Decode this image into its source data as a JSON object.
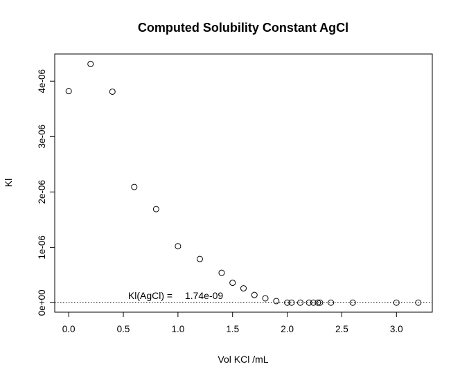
{
  "chart_data": {
    "type": "scatter",
    "title": "Computed Solubility Constant AgCl",
    "xlabel": "Vol KCl /mL",
    "ylabel": "Kl",
    "xlim": [
      -0.128,
      3.328
    ],
    "ylim": [
      -1.701e-07,
      4.4902e-06
    ],
    "x_ticks": [
      0.0,
      0.5,
      1.0,
      1.5,
      2.0,
      2.5,
      3.0
    ],
    "x_tick_labels": [
      "0.0",
      "0.5",
      "1.0",
      "1.5",
      "2.0",
      "2.5",
      "3.0"
    ],
    "y_ticks": [
      0,
      1e-06,
      2e-06,
      3e-06,
      4e-06
    ],
    "y_tick_labels": [
      "0e+00",
      "1e-06",
      "2e-06",
      "3e-06",
      "4e-06"
    ],
    "grid": false,
    "legend": "none",
    "marker": "open-circle",
    "points": {
      "x": [
        0.0,
        0.2,
        0.4,
        0.6,
        0.8,
        1.0,
        1.2,
        1.4,
        1.5,
        1.6,
        1.7,
        1.8,
        1.9,
        2.0,
        2.04,
        2.12,
        2.2,
        2.24,
        2.28,
        2.3,
        2.4,
        2.6,
        3.0,
        3.2
      ],
      "y": [
        3.82e-06,
        4.31e-06,
        3.81e-06,
        2.09e-06,
        1.69e-06,
        1.02e-06,
        7.9e-07,
        5.4e-07,
        3.6e-07,
        2.6e-07,
        1.4e-07,
        8e-08,
        3e-08,
        1.7e-09,
        1.7e-09,
        1.7e-09,
        1.7e-09,
        1.7e-09,
        1.7e-09,
        1.7e-09,
        1.7e-09,
        1.7e-09,
        1.7e-09,
        1.7e-09
      ]
    },
    "reference_line": {
      "y": 1.74e-09,
      "style": "dotted"
    },
    "annotation": {
      "label": "Kl(AgCl) =",
      "value": "1.74e-09",
      "x": 0.55,
      "y": 1.74e-09
    }
  }
}
